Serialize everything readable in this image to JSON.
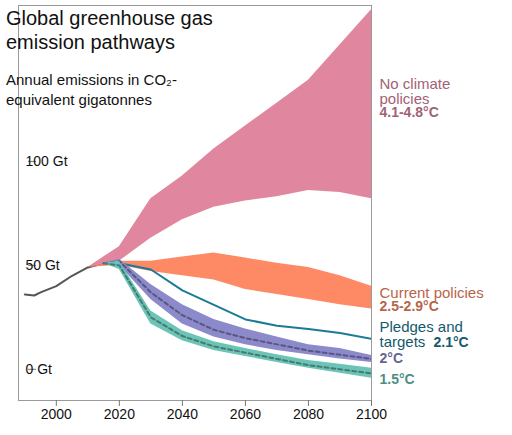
{
  "chart_data": {
    "type": "area",
    "title": "Global greenhouse gas emission pathways",
    "subtitle": "Annual emissions in CO₂-equivalent gigatonnes",
    "xlim": [
      1988,
      2100
    ],
    "xticks": [
      2000,
      2020,
      2040,
      2060,
      2080,
      2100
    ],
    "ylim": [
      -15,
      175
    ],
    "yticks": [
      {
        "value": 0,
        "label": "0 Gt"
      },
      {
        "value": 50,
        "label": "50 Gt"
      },
      {
        "value": 100,
        "label": "100 Gt"
      }
    ],
    "grid": false,
    "series": [
      {
        "type": "line",
        "color": "#555555",
        "x": [
          1990,
          1993,
          1995,
          2000,
          2005,
          2010,
          2015,
          2020
        ],
        "values": [
          36,
          35.5,
          37,
          40,
          45,
          49,
          51,
          52
        ]
      },
      {
        "name": "No climate policies",
        "temperature": "4.1-4.8°C",
        "type": "band",
        "color": "#e0879f",
        "x": [
          2010,
          2020,
          2030,
          2040,
          2050,
          2060,
          2070,
          2080,
          2090,
          2100
        ],
        "low": [
          49,
          52,
          63,
          72,
          78,
          81,
          83,
          86,
          85,
          82
        ],
        "high": [
          49,
          59,
          82,
          93,
          106,
          117,
          128,
          139,
          156,
          173
        ]
      },
      {
        "name": "Current policies",
        "temperature": "2.5-2.9°C",
        "type": "band",
        "color": "#fe8a65",
        "x": [
          2010,
          2020,
          2030,
          2040,
          2050,
          2060,
          2070,
          2080,
          2090,
          2100
        ],
        "low": [
          49,
          50,
          47,
          45,
          43,
          38.4,
          36,
          33.6,
          31,
          29
        ],
        "high": [
          49,
          52,
          52,
          54,
          56,
          53.5,
          51,
          49,
          45,
          40
        ]
      },
      {
        "name": "Pledges and targets",
        "temperature": "2.1°C",
        "type": "line",
        "color": "#1b7b96",
        "x": [
          2015,
          2020,
          2030,
          2040,
          2050,
          2060,
          2070,
          2080,
          2090,
          2100
        ],
        "values": [
          51,
          51,
          48,
          38,
          31,
          24,
          21,
          19.4,
          17.5,
          14.7
        ]
      },
      {
        "name": "2°C",
        "type": "band",
        "color": "#8c8acb",
        "line_style": "dashed",
        "x": [
          2015,
          2020,
          2030,
          2040,
          2050,
          2060,
          2070,
          2080,
          2090,
          2100
        ],
        "low": [
          51,
          50,
          33.6,
          21.8,
          15.6,
          11.8,
          9,
          7,
          5,
          3.3
        ],
        "high": [
          51,
          53,
          40.8,
          31,
          24,
          19.4,
          15.6,
          11.8,
          10,
          6.6
        ],
        "values": [
          51,
          52,
          37,
          26,
          19,
          15,
          12,
          9,
          7,
          5
        ]
      },
      {
        "name": "1.5°C",
        "type": "band",
        "color": "#6cc4b6",
        "line_style": "dashed",
        "x": [
          2015,
          2020,
          2030,
          2040,
          2050,
          2060,
          2070,
          2080,
          2090,
          2100
        ],
        "low": [
          51,
          48,
          21.8,
          13.7,
          9,
          6.2,
          3.3,
          0.5,
          -1.9,
          -4.3
        ],
        "high": [
          51,
          52,
          28,
          18.5,
          13.3,
          10,
          7,
          4.3,
          2.4,
          0.5
        ],
        "values": [
          51,
          50,
          25,
          16,
          11,
          8,
          5,
          2,
          0,
          -2
        ]
      }
    ]
  }
}
